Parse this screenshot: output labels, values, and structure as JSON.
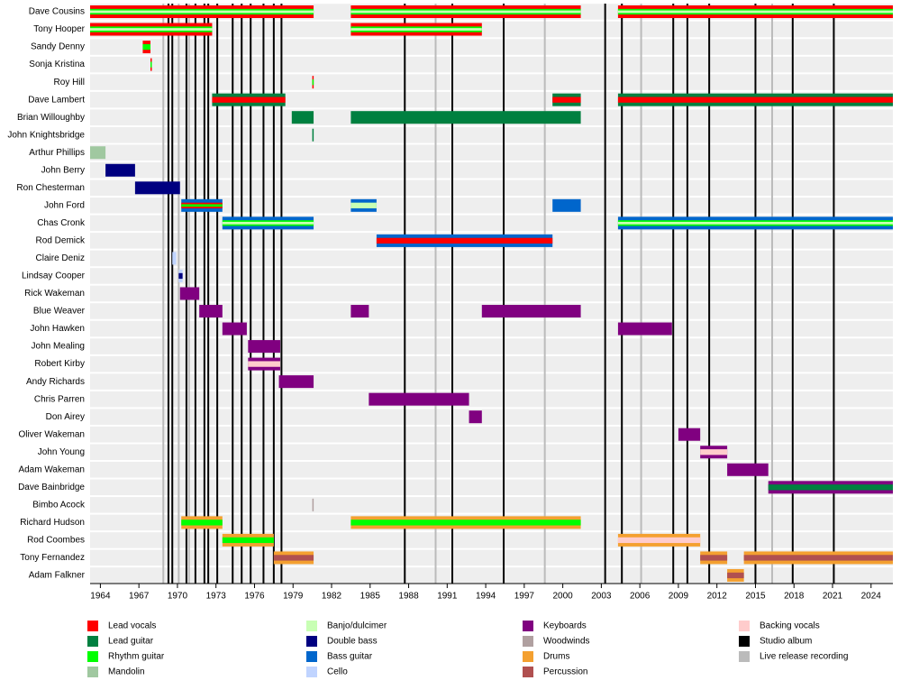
{
  "chart_data": {
    "type": "timeline",
    "xlim": [
      1963.2,
      2025.7
    ],
    "xticks": [
      1964,
      1967,
      1970,
      1973,
      1976,
      1979,
      1982,
      1985,
      1988,
      1991,
      1994,
      1997,
      2000,
      2003,
      2006,
      2009,
      2012,
      2015,
      2018,
      2021,
      2024
    ],
    "roles": [
      {
        "name": "Lead vocals",
        "color": "#ff0000"
      },
      {
        "name": "Lead guitar",
        "color": "#008040"
      },
      {
        "name": "Rhythm guitar",
        "color": "#00ff00"
      },
      {
        "name": "Mandolin",
        "color": "#a0c8a0"
      },
      {
        "name": "Banjo/dulcimer",
        "color": "#c8ffb4"
      },
      {
        "name": "Double bass",
        "color": "#000080"
      },
      {
        "name": "Bass guitar",
        "color": "#0066cc"
      },
      {
        "name": "Cello",
        "color": "#c0d4ff"
      },
      {
        "name": "Keyboards",
        "color": "#800080"
      },
      {
        "name": "Woodwinds",
        "color": "#b0a0a0"
      },
      {
        "name": "Drums",
        "color": "#f4a030"
      },
      {
        "name": "Percussion",
        "color": "#b05050"
      },
      {
        "name": "Backing vocals",
        "color": "#ffcccc"
      }
    ],
    "events": [
      {
        "name": "Studio album",
        "color": "#000000",
        "x": [
          1969.3,
          1969.6,
          1970.7,
          1971.4,
          1972.1,
          1972.4,
          1973.1,
          1974.3,
          1975.0,
          1975.7,
          1976.7,
          1977.5,
          1978.1,
          1987.7,
          1991.4,
          1995.4,
          2003.3,
          2004.6,
          2008.6,
          2009.7,
          2011.4,
          2015.0,
          2017.9,
          2021.1
        ]
      },
      {
        "name": "Live release recording",
        "color": "#bbbbbb",
        "x": [
          1968.9,
          1970.1,
          1970.9,
          1990.1,
          1998.6,
          2006.1,
          2016.3
        ]
      }
    ],
    "rows": [
      {
        "name": "Dave Cousins",
        "spans": [
          {
            "start": 1963.2,
            "end": 1980.6,
            "roles": [
              "Lead vocals",
              "Rhythm guitar",
              "Banjo/dulcimer"
            ]
          },
          {
            "start": 1983.5,
            "end": 2001.4,
            "roles": [
              "Lead vocals",
              "Rhythm guitar",
              "Banjo/dulcimer"
            ]
          },
          {
            "start": 2004.3,
            "end": 2025.7,
            "roles": [
              "Lead vocals",
              "Rhythm guitar",
              "Banjo/dulcimer"
            ]
          }
        ]
      },
      {
        "name": "Tony Hooper",
        "spans": [
          {
            "start": 1963.2,
            "end": 1972.7,
            "roles": [
              "Lead vocals",
              "Rhythm guitar",
              "Banjo/dulcimer"
            ]
          },
          {
            "start": 1983.5,
            "end": 1993.7,
            "roles": [
              "Lead vocals",
              "Rhythm guitar",
              "Banjo/dulcimer"
            ]
          }
        ]
      },
      {
        "name": "Sandy Denny",
        "spans": [
          {
            "start": 1967.3,
            "end": 1967.9,
            "roles": [
              "Lead vocals",
              "Rhythm guitar"
            ]
          }
        ]
      },
      {
        "name": "Sonja Kristina",
        "spans": [
          {
            "start": 1967.9,
            "end": 1968.0,
            "roles": [
              "Lead vocals",
              "Rhythm guitar"
            ]
          }
        ]
      },
      {
        "name": "Roy Hill",
        "spans": [
          {
            "start": 1980.5,
            "end": 1980.6,
            "roles": [
              "Lead vocals",
              "Rhythm guitar"
            ]
          }
        ]
      },
      {
        "name": "Dave Lambert",
        "spans": [
          {
            "start": 1972.7,
            "end": 1978.4,
            "roles": [
              "Lead guitar",
              "Lead vocals"
            ]
          },
          {
            "start": 1999.2,
            "end": 2001.4,
            "roles": [
              "Lead guitar",
              "Lead vocals"
            ]
          },
          {
            "start": 2004.3,
            "end": 2025.7,
            "roles": [
              "Lead guitar",
              "Lead vocals"
            ]
          }
        ]
      },
      {
        "name": "Brian Willoughby",
        "spans": [
          {
            "start": 1978.9,
            "end": 1980.6,
            "roles": [
              "Lead guitar"
            ]
          },
          {
            "start": 1983.5,
            "end": 2001.4,
            "roles": [
              "Lead guitar"
            ]
          }
        ]
      },
      {
        "name": "John Knightsbridge",
        "spans": [
          {
            "start": 1980.5,
            "end": 1980.6,
            "roles": [
              "Lead guitar"
            ]
          }
        ]
      },
      {
        "name": "Arthur Phillips",
        "spans": [
          {
            "start": 1963.2,
            "end": 1964.4,
            "roles": [
              "Mandolin"
            ]
          }
        ]
      },
      {
        "name": "John Berry",
        "spans": [
          {
            "start": 1964.4,
            "end": 1966.7,
            "roles": [
              "Double bass"
            ]
          }
        ]
      },
      {
        "name": "Ron Chesterman",
        "spans": [
          {
            "start": 1966.7,
            "end": 1970.2,
            "roles": [
              "Double bass"
            ]
          }
        ]
      },
      {
        "name": "John Ford",
        "spans": [
          {
            "start": 1970.3,
            "end": 1973.5,
            "roles": [
              "Bass guitar",
              "Lead vocals",
              "Rhythm guitar"
            ]
          },
          {
            "start": 1983.5,
            "end": 1985.5,
            "roles": [
              "Bass guitar",
              "Banjo/dulcimer"
            ]
          },
          {
            "start": 1999.2,
            "end": 2001.4,
            "roles": [
              "Bass guitar"
            ]
          }
        ]
      },
      {
        "name": "Chas Cronk",
        "spans": [
          {
            "start": 1973.5,
            "end": 1980.6,
            "roles": [
              "Bass guitar",
              "Rhythm guitar",
              "Banjo/dulcimer"
            ]
          },
          {
            "start": 2004.3,
            "end": 2025.7,
            "roles": [
              "Bass guitar",
              "Rhythm guitar",
              "Banjo/dulcimer"
            ]
          }
        ]
      },
      {
        "name": "Rod Demick",
        "spans": [
          {
            "start": 1985.5,
            "end": 1999.2,
            "roles": [
              "Bass guitar",
              "Lead vocals"
            ]
          }
        ]
      },
      {
        "name": "Claire Deniz",
        "spans": [
          {
            "start": 1969.6,
            "end": 1969.9,
            "roles": [
              "Cello"
            ]
          }
        ]
      },
      {
        "name": "Lindsay Cooper",
        "spans": [
          {
            "start": 1970.1,
            "end": 1970.4,
            "roles": [
              "Cello",
              "Double bass"
            ]
          }
        ]
      },
      {
        "name": "Rick Wakeman",
        "spans": [
          {
            "start": 1970.2,
            "end": 1971.7,
            "roles": [
              "Keyboards"
            ]
          }
        ]
      },
      {
        "name": "Blue Weaver",
        "spans": [
          {
            "start": 1971.7,
            "end": 1973.5,
            "roles": [
              "Keyboards"
            ]
          },
          {
            "start": 1983.5,
            "end": 1984.9,
            "roles": [
              "Keyboards"
            ]
          },
          {
            "start": 1993.7,
            "end": 2001.4,
            "roles": [
              "Keyboards"
            ]
          }
        ]
      },
      {
        "name": "John Hawken",
        "spans": [
          {
            "start": 1973.5,
            "end": 1975.4,
            "roles": [
              "Keyboards"
            ]
          },
          {
            "start": 2004.3,
            "end": 2008.5,
            "roles": [
              "Keyboards"
            ]
          }
        ]
      },
      {
        "name": "John Mealing",
        "spans": [
          {
            "start": 1975.5,
            "end": 1978.0,
            "roles": [
              "Keyboards"
            ]
          }
        ]
      },
      {
        "name": "Robert Kirby",
        "spans": [
          {
            "start": 1975.5,
            "end": 1978.0,
            "roles": [
              "Keyboards",
              "Backing vocals"
            ]
          }
        ]
      },
      {
        "name": "Andy Richards",
        "spans": [
          {
            "start": 1977.9,
            "end": 1980.6,
            "roles": [
              "Keyboards"
            ]
          }
        ]
      },
      {
        "name": "Chris Parren",
        "spans": [
          {
            "start": 1984.9,
            "end": 1992.7,
            "roles": [
              "Keyboards"
            ]
          }
        ]
      },
      {
        "name": "Don Airey",
        "spans": [
          {
            "start": 1992.7,
            "end": 1993.7,
            "roles": [
              "Keyboards"
            ]
          }
        ]
      },
      {
        "name": "Oliver Wakeman",
        "spans": [
          {
            "start": 2009.0,
            "end": 2010.7,
            "roles": [
              "Keyboards"
            ]
          }
        ]
      },
      {
        "name": "John Young",
        "spans": [
          {
            "start": 2010.7,
            "end": 2012.8,
            "roles": [
              "Keyboards",
              "Backing vocals"
            ]
          }
        ]
      },
      {
        "name": "Adam Wakeman",
        "spans": [
          {
            "start": 2012.8,
            "end": 2016.0,
            "roles": [
              "Keyboards"
            ]
          }
        ]
      },
      {
        "name": "Dave Bainbridge",
        "spans": [
          {
            "start": 2016.0,
            "end": 2025.7,
            "roles": [
              "Keyboards",
              "Lead guitar"
            ]
          }
        ]
      },
      {
        "name": "Bimbo Acock",
        "spans": [
          {
            "start": 1980.5,
            "end": 1980.6,
            "roles": [
              "Woodwinds"
            ]
          }
        ]
      },
      {
        "name": "Richard Hudson",
        "spans": [
          {
            "start": 1970.3,
            "end": 1973.5,
            "roles": [
              "Drums",
              "Rhythm guitar"
            ]
          },
          {
            "start": 1983.5,
            "end": 2001.4,
            "roles": [
              "Drums",
              "Rhythm guitar"
            ]
          }
        ]
      },
      {
        "name": "Rod Coombes",
        "spans": [
          {
            "start": 1973.5,
            "end": 1977.5,
            "roles": [
              "Drums",
              "Rhythm guitar"
            ]
          },
          {
            "start": 2004.3,
            "end": 2010.7,
            "roles": [
              "Drums",
              "Backing vocals"
            ]
          }
        ]
      },
      {
        "name": "Tony Fernandez",
        "spans": [
          {
            "start": 1977.5,
            "end": 1980.6,
            "roles": [
              "Drums",
              "Percussion"
            ]
          },
          {
            "start": 2010.7,
            "end": 2012.8,
            "roles": [
              "Drums",
              "Percussion"
            ]
          },
          {
            "start": 2014.1,
            "end": 2025.7,
            "roles": [
              "Drums",
              "Percussion"
            ]
          }
        ]
      },
      {
        "name": "Adam Falkner",
        "spans": [
          {
            "start": 2012.8,
            "end": 2014.1,
            "roles": [
              "Drums",
              "Percussion"
            ]
          }
        ]
      }
    ]
  }
}
